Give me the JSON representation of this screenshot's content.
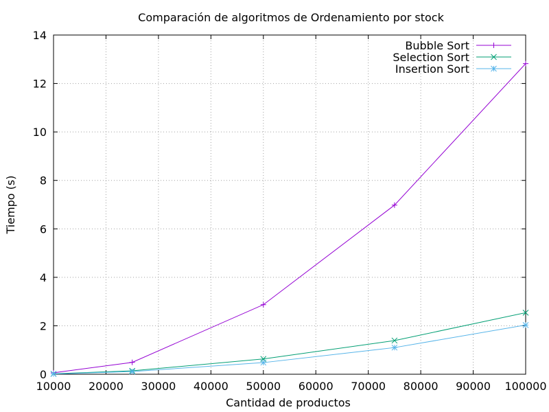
{
  "chart_data": {
    "type": "line",
    "title": "Comparación de algoritmos de Ordenamiento por stock",
    "xlabel": "Cantidad de productos",
    "ylabel": "Tiempo (s)",
    "xlim": [
      10000,
      100000
    ],
    "ylim": [
      0,
      14
    ],
    "x_ticks": [
      10000,
      20000,
      30000,
      40000,
      50000,
      60000,
      70000,
      80000,
      90000,
      100000
    ],
    "y_ticks": [
      0,
      2,
      4,
      6,
      8,
      10,
      12,
      14
    ],
    "grid": true,
    "legend_position": "top-right",
    "series": [
      {
        "name": "Bubble Sort",
        "color": "#9400d3",
        "marker": "plus",
        "x": [
          10000,
          25000,
          50000,
          75000,
          100000
        ],
        "values": [
          0.06,
          0.49,
          2.87,
          6.98,
          12.82
        ]
      },
      {
        "name": "Selection Sort",
        "color": "#009e73",
        "marker": "cross",
        "x": [
          10000,
          25000,
          50000,
          75000,
          100000
        ],
        "values": [
          0.02,
          0.14,
          0.63,
          1.39,
          2.54
        ]
      },
      {
        "name": "Insertion Sort",
        "color": "#56b4e9",
        "marker": "star",
        "x": [
          10000,
          25000,
          50000,
          75000,
          100000
        ],
        "values": [
          0.01,
          0.11,
          0.48,
          1.1,
          2.03
        ]
      }
    ]
  }
}
